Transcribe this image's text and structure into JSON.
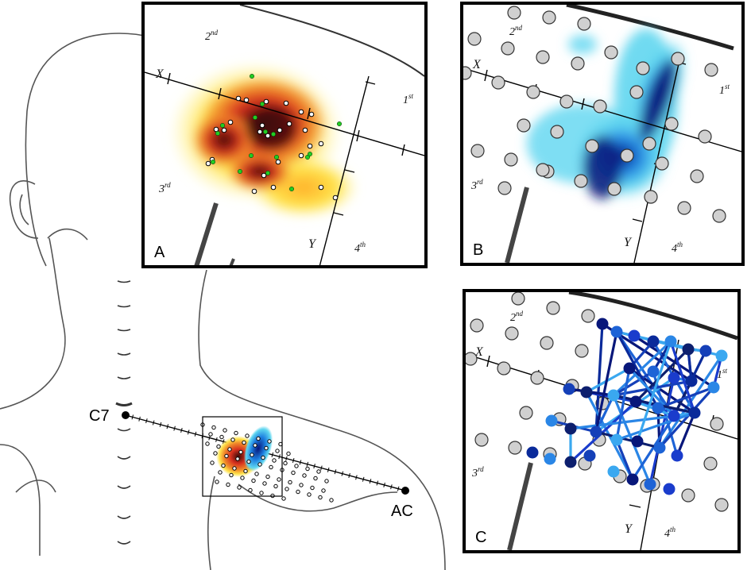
{
  "landmarks": {
    "c7": "C7",
    "ac": "AC"
  },
  "panels": {
    "a": {
      "label": "A"
    },
    "b": {
      "label": "B"
    },
    "c": {
      "label": "C"
    }
  },
  "axes": {
    "x": "X",
    "y": "Y"
  },
  "quadrants": {
    "q1": {
      "num": "1",
      "sup": "st"
    },
    "q2": {
      "num": "2",
      "sup": "nd"
    },
    "q3": {
      "num": "3",
      "sup": "rd"
    },
    "q4": {
      "num": "4",
      "sup": "th"
    }
  },
  "colors": {
    "heat_dark": "#3a0a08",
    "heat_red": "#d7301f",
    "heat_orange": "#f08a2a",
    "heat_yellow": "#ffe24a",
    "cold_dark": "#08177a",
    "cold_blue": "#1d7fe0",
    "cold_cyan": "#5fd6f0",
    "point_green": "#22cc22",
    "grid_point": "#d0d0d0"
  }
}
